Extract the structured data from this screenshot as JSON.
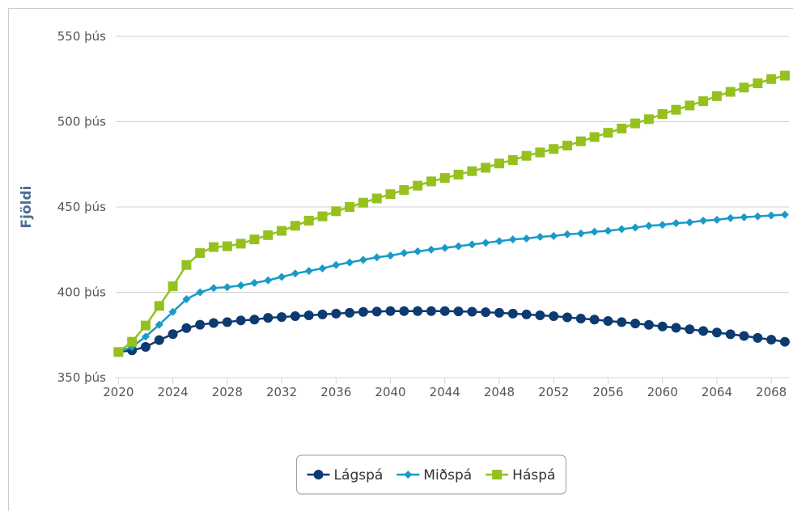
{
  "chart_data": {
    "type": "line",
    "y_label": "Fjöldi",
    "x": [
      2020,
      2021,
      2022,
      2023,
      2024,
      2025,
      2026,
      2027,
      2028,
      2029,
      2030,
      2031,
      2032,
      2033,
      2034,
      2035,
      2036,
      2037,
      2038,
      2039,
      2040,
      2041,
      2042,
      2043,
      2044,
      2045,
      2046,
      2047,
      2048,
      2049,
      2050,
      2051,
      2052,
      2053,
      2054,
      2055,
      2056,
      2057,
      2058,
      2059,
      2060,
      2061,
      2062,
      2063,
      2064,
      2065,
      2066,
      2067,
      2068,
      2069
    ],
    "series": [
      {
        "name": "Lágspá",
        "color": "#0d3a70",
        "marker": "circle",
        "values": [
          365,
          366,
          368,
          372,
          375.5,
          379,
          381,
          382,
          382.5,
          383.5,
          384,
          385,
          385.5,
          386,
          386.5,
          387,
          387.5,
          388,
          388.5,
          388.7,
          389,
          389,
          389,
          389,
          389,
          388.8,
          388.6,
          388.3,
          388,
          387.5,
          387,
          386.5,
          386,
          385.3,
          384.6,
          384,
          383.2,
          382.5,
          381.7,
          380.9,
          380,
          379.2,
          378.3,
          377.3,
          376.4,
          375.4,
          374.4,
          373.3,
          372.2,
          371
        ]
      },
      {
        "name": "Miðspá",
        "color": "#1a9ac9",
        "marker": "diamond",
        "values": [
          365,
          368,
          374,
          381,
          388.5,
          396,
          400,
          402.5,
          403,
          404,
          405.5,
          407,
          409,
          411,
          412.5,
          414,
          416,
          417.5,
          419,
          420.5,
          421.5,
          423,
          424,
          425,
          426,
          427,
          428,
          429,
          430,
          431,
          431.5,
          432.5,
          433,
          434,
          434.5,
          435.5,
          436,
          437,
          438,
          439,
          439.5,
          440.5,
          441,
          442,
          442.5,
          443.5,
          444,
          444.5,
          445,
          445.5
        ]
      },
      {
        "name": "Háspá",
        "color": "#95c11f",
        "marker": "square",
        "values": [
          365,
          371,
          380.5,
          392,
          403.5,
          416,
          423,
          426.5,
          427,
          428.5,
          431,
          433.5,
          436,
          439,
          442,
          444.5,
          447.5,
          450,
          452.5,
          455,
          457.5,
          460,
          462.5,
          465,
          467,
          469,
          471,
          473,
          475.5,
          477.5,
          480,
          482,
          484,
          486,
          488.5,
          491,
          493.5,
          496,
          499,
          501.5,
          504.5,
          507,
          509.5,
          512,
          515,
          517.5,
          520,
          522.5,
          525,
          527
        ]
      }
    ],
    "xlim": [
      2019.8,
      2069.3
    ],
    "xticks": [
      2020,
      2024,
      2028,
      2032,
      2036,
      2040,
      2044,
      2048,
      2052,
      2056,
      2060,
      2064,
      2068
    ],
    "ylim": [
      350,
      550
    ],
    "yticks": [
      {
        "value": 350,
        "label": "350 þús"
      },
      {
        "value": 400,
        "label": "400 þús"
      },
      {
        "value": 450,
        "label": "450 þús"
      },
      {
        "value": 500,
        "label": "500 þús"
      },
      {
        "value": 550,
        "label": "550 þús"
      }
    ],
    "grid": true,
    "legend": "bottom"
  }
}
